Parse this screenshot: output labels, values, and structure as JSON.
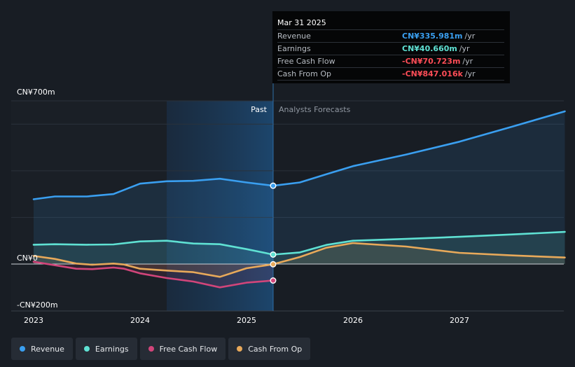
{
  "tooltip": {
    "date": "Mar 31 2025",
    "rows": [
      {
        "label": "Revenue",
        "value": "CN¥335.981m",
        "unit": "/yr",
        "color": "#3a9ff0"
      },
      {
        "label": "Earnings",
        "value": "CN¥40.660m",
        "unit": "/yr",
        "color": "#5fe1d3"
      },
      {
        "label": "Free Cash Flow",
        "value": "-CN¥70.723m",
        "unit": "/yr",
        "color": "#ff4d57"
      },
      {
        "label": "Cash From Op",
        "value": "-CN¥847.016k",
        "unit": "/yr",
        "color": "#ff4d57"
      }
    ]
  },
  "chart_data": {
    "type": "line",
    "y_tick_labels": [
      "CN¥700m",
      "CN¥0",
      "-CN¥200m"
    ],
    "x_tick_labels": [
      "2023",
      "2024",
      "2025",
      "2026",
      "2027"
    ],
    "past_label": "Past",
    "forecast_label": "Analysts Forecasts",
    "ylim": [
      -200,
      700
    ],
    "series": [
      {
        "name": "Revenue",
        "color": "#3a9ff0",
        "marker": 335.981,
        "x": [
          2023.0,
          2023.2,
          2023.5,
          2023.75,
          2024.0,
          2024.25,
          2024.5,
          2024.75,
          2025.0,
          2025.25,
          2025.5,
          2025.75,
          2026.0,
          2026.5,
          2027.0,
          2027.5,
          2027.99
        ],
        "y": [
          278,
          290,
          290,
          300,
          345,
          355,
          357,
          366,
          350,
          336,
          350,
          385,
          420,
          470,
          525,
          590,
          655
        ]
      },
      {
        "name": "Earnings",
        "color": "#5fe1d3",
        "marker": 40.66,
        "x": [
          2023.0,
          2023.2,
          2023.5,
          2023.75,
          2024.0,
          2024.25,
          2024.5,
          2024.75,
          2025.0,
          2025.25,
          2025.5,
          2025.75,
          2026.0,
          2026.5,
          2027.0,
          2027.5,
          2027.99
        ],
        "y": [
          83,
          85,
          83,
          84,
          97,
          100,
          88,
          85,
          64,
          40.66,
          50,
          82,
          100,
          108,
          117,
          127,
          138
        ]
      },
      {
        "name": "Free Cash Flow",
        "color": "#d1457a",
        "marker": -70.723,
        "x": [
          2023.0,
          2023.2,
          2023.4,
          2023.55,
          2023.75,
          2023.85,
          2024.0,
          2024.25,
          2024.5,
          2024.75,
          2025.0,
          2025.25
        ],
        "y": [
          10,
          -5,
          -20,
          -22,
          -15,
          -20,
          -40,
          -60,
          -75,
          -100,
          -80,
          -70.723
        ]
      },
      {
        "name": "Cash From Op",
        "color": "#e8a95a",
        "marker": -0.847,
        "x": [
          2023.0,
          2023.2,
          2023.4,
          2023.55,
          2023.75,
          2023.85,
          2024.0,
          2024.25,
          2024.5,
          2024.75,
          2025.0,
          2025.25,
          2025.5,
          2025.75,
          2026.0,
          2026.5,
          2027.0,
          2027.5,
          2027.99
        ],
        "y": [
          35,
          22,
          2,
          -3,
          2,
          -2,
          -20,
          -28,
          -35,
          -55,
          -18,
          -0.847,
          30,
          70,
          90,
          75,
          48,
          37,
          28
        ]
      }
    ]
  },
  "legend": [
    {
      "label": "Revenue",
      "color": "#3a9ff0"
    },
    {
      "label": "Earnings",
      "color": "#5fe1d3"
    },
    {
      "label": "Free Cash Flow",
      "color": "#d1457a"
    },
    {
      "label": "Cash From Op",
      "color": "#e8a95a"
    }
  ]
}
